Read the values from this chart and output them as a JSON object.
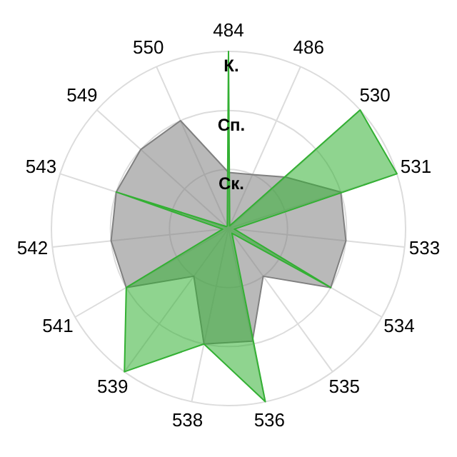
{
  "chart_data": {
    "type": "radar",
    "categories": [
      "484",
      "486",
      "530",
      "531",
      "533",
      "534",
      "535",
      "536",
      "538",
      "539",
      "541",
      "542",
      "543",
      "549",
      "550"
    ],
    "series": [
      {
        "color": "#808080",
        "values": [
          0.95,
          1.0,
          1.3,
          2.0,
          2.0,
          2.0,
          1.0,
          1.95,
          2.0,
          1.0,
          2.0,
          2.0,
          2.0,
          2.0,
          2.0
        ]
      },
      {
        "color": "#33b033",
        "values": [
          3.0,
          0.05,
          3.0,
          3.0,
          0.1,
          2.0,
          0.1,
          3.0,
          2.0,
          3.0,
          2.0,
          0.1,
          2.0,
          0.05,
          0.05
        ]
      }
    ],
    "ylim": [
      0,
      3
    ],
    "yticks": [
      {
        "value": 1,
        "label": "Ск."
      },
      {
        "value": 2,
        "label": "Сп."
      },
      {
        "value": 3,
        "label": "К."
      }
    ],
    "grid": true
  }
}
